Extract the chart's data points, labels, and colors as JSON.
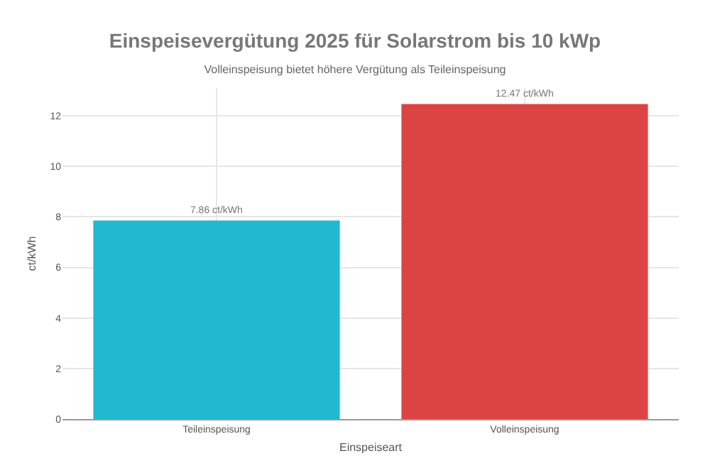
{
  "chart_data": {
    "type": "bar",
    "title": "Einspeisevergütung 2025 für Solarstrom bis 10 kWp",
    "subtitle": "Volleinspeisung bietet höhere Vergütung als Teileinspeisung",
    "xlabel": "Einspeiseart",
    "ylabel": "ct/kWh",
    "categories": [
      "Teileinspeisung",
      "Volleinspeisung"
    ],
    "values": [
      7.86,
      12.47
    ],
    "colors": [
      "#22b8cf",
      "#dc4444"
    ],
    "value_labels": [
      "7.86 ct/kWh",
      "12.47 ct/kWh"
    ],
    "ylim": [
      0,
      13.1
    ],
    "yticks": [
      0,
      2,
      4,
      6,
      8,
      10,
      12
    ],
    "grid": true
  }
}
